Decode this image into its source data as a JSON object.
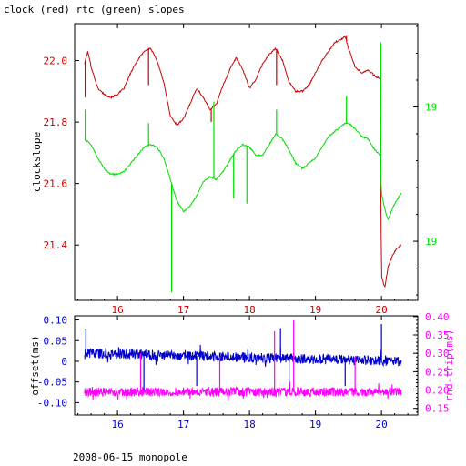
{
  "title": "clock (red) rtc (green) slopes",
  "footer": "2008-06-15 monopole",
  "colors": {
    "red": "#cc0000",
    "green": "#00dd00",
    "blue": "#0000cc",
    "magenta": "#ff00ff",
    "axis": "#000000"
  },
  "chart_data": [
    {
      "type": "line",
      "ylabel": "clockslope",
      "xlim": [
        15.35,
        20.55
      ],
      "ylim": [
        21.22,
        22.12
      ],
      "y2lim": [
        18.28,
        19.31
      ],
      "x_ticks": [
        16,
        17,
        18,
        19,
        20
      ],
      "y_ticks": [
        21.4,
        21.6,
        21.8,
        22
      ],
      "y2_ticks": [
        18.5,
        19
      ],
      "series": [
        {
          "axis": "left",
          "color": "red",
          "x": [
            15.5,
            15.55,
            15.6,
            15.7,
            15.8,
            15.9,
            16.0,
            16.1,
            16.2,
            16.3,
            16.4,
            16.5,
            16.6,
            16.7,
            16.8,
            16.9,
            17.0,
            17.1,
            17.2,
            17.3,
            17.4,
            17.5,
            17.6,
            17.7,
            17.8,
            17.9,
            18.0,
            18.1,
            18.2,
            18.3,
            18.4,
            18.5,
            18.6,
            18.7,
            18.8,
            18.9,
            19.0,
            19.1,
            19.2,
            19.3,
            19.4,
            19.45,
            19.5,
            19.6,
            19.7,
            19.8,
            19.9,
            19.98,
            20.0,
            20.05,
            20.1,
            20.2,
            20.3
          ],
          "y": [
            21.99,
            22.03,
            21.98,
            21.91,
            21.89,
            21.88,
            21.89,
            21.91,
            21.96,
            22.0,
            22.03,
            22.04,
            22.0,
            21.93,
            21.82,
            21.79,
            21.81,
            21.86,
            21.91,
            21.88,
            21.84,
            21.86,
            21.92,
            21.97,
            22.01,
            21.97,
            21.91,
            21.94,
            21.99,
            22.02,
            22.04,
            22.0,
            21.93,
            21.9,
            21.9,
            21.92,
            21.96,
            22.0,
            22.03,
            22.06,
            22.07,
            22.08,
            22.04,
            21.98,
            21.96,
            21.97,
            21.95,
            21.94,
            21.3,
            21.26,
            21.33,
            21.38,
            21.4
          ]
        },
        {
          "axis": "right",
          "color": "green",
          "x": [
            15.5,
            15.6,
            15.7,
            15.8,
            15.9,
            16.0,
            16.1,
            16.2,
            16.3,
            16.4,
            16.5,
            16.6,
            16.7,
            16.8,
            16.9,
            17.0,
            17.1,
            17.2,
            17.3,
            17.4,
            17.5,
            17.6,
            17.7,
            17.8,
            17.9,
            18.0,
            18.1,
            18.2,
            18.3,
            18.4,
            18.5,
            18.6,
            18.7,
            18.8,
            18.9,
            19.0,
            19.1,
            19.2,
            19.3,
            19.4,
            19.45,
            19.5,
            19.6,
            19.7,
            19.8,
            19.9,
            19.98,
            20.0,
            20.05,
            20.1,
            20.2,
            20.3
          ],
          "y": [
            18.88,
            18.86,
            18.81,
            18.77,
            18.75,
            18.75,
            18.76,
            18.79,
            18.82,
            18.85,
            18.86,
            18.85,
            18.81,
            18.73,
            18.65,
            18.61,
            18.63,
            18.67,
            18.72,
            18.74,
            18.73,
            18.76,
            18.8,
            18.84,
            18.86,
            18.85,
            18.82,
            18.82,
            18.86,
            18.9,
            18.88,
            18.84,
            18.79,
            18.77,
            18.79,
            18.81,
            18.85,
            18.89,
            18.91,
            18.93,
            18.94,
            18.94,
            18.92,
            18.89,
            18.88,
            18.84,
            18.82,
            18.68,
            18.62,
            18.58,
            18.64,
            18.68
          ]
        }
      ],
      "spikes": [
        {
          "color": "red",
          "x": 15.51,
          "y": 21.88
        },
        {
          "color": "red",
          "x": 16.47,
          "y": 21.92
        },
        {
          "color": "red",
          "x": 17.42,
          "y": 21.8
        },
        {
          "color": "red",
          "x": 18.41,
          "y": 21.92
        },
        {
          "color": "red",
          "x": 19.47,
          "y": 22.08
        },
        {
          "color": "green",
          "x": 15.51,
          "y": 18.99
        },
        {
          "color": "green",
          "x": 16.47,
          "y": 18.94
        },
        {
          "color": "green",
          "x": 16.82,
          "y": 18.31
        },
        {
          "color": "green",
          "x": 17.46,
          "y": 19.02
        },
        {
          "color": "green",
          "x": 17.76,
          "y": 18.66
        },
        {
          "color": "green",
          "x": 17.96,
          "y": 18.64
        },
        {
          "color": "green",
          "x": 18.41,
          "y": 18.99
        },
        {
          "color": "green",
          "x": 19.47,
          "y": 19.04
        },
        {
          "color": "green",
          "x": 19.99,
          "y": 19.24
        }
      ]
    },
    {
      "type": "line",
      "ylabel": "offset(ms)",
      "y2label": "rnd-trip(ms)",
      "xlim": [
        15.35,
        20.55
      ],
      "ylim": [
        -0.13,
        0.11
      ],
      "y2lim": [
        0.132,
        0.402
      ],
      "x_ticks": [
        16,
        17,
        18,
        19,
        20
      ],
      "y_ticks": [
        -0.1,
        -0.05,
        0,
        0.05,
        0.1
      ],
      "y2_ticks": [
        0.15,
        0.2,
        0.25,
        0.3,
        0.35,
        0.4
      ],
      "series": [
        {
          "axis": "left",
          "color": "blue",
          "x": [
            15.5,
            20.3
          ],
          "y": [
            0.02,
            0.0
          ]
        },
        {
          "axis": "right",
          "color": "magenta",
          "x": [
            15.5,
            20.3
          ],
          "y": [
            0.195,
            0.195
          ]
        }
      ],
      "spikes": [
        {
          "color": "blue",
          "x": 15.52,
          "y": 0.08
        },
        {
          "color": "blue",
          "x": 16.4,
          "y": -0.07
        },
        {
          "color": "blue",
          "x": 17.2,
          "y": -0.06
        },
        {
          "color": "blue",
          "x": 18.47,
          "y": 0.08
        },
        {
          "color": "blue",
          "x": 18.6,
          "y": -0.07
        },
        {
          "color": "blue",
          "x": 19.45,
          "y": -0.06
        },
        {
          "color": "blue",
          "x": 20.0,
          "y": 0.09
        },
        {
          "color": "magenta",
          "x": 18.38,
          "y": 0.36
        },
        {
          "color": "magenta",
          "x": 18.67,
          "y": 0.39
        },
        {
          "color": "magenta",
          "x": 16.35,
          "y": 0.3
        },
        {
          "color": "magenta",
          "x": 17.55,
          "y": 0.29
        },
        {
          "color": "magenta",
          "x": 19.6,
          "y": 0.29
        }
      ]
    }
  ]
}
